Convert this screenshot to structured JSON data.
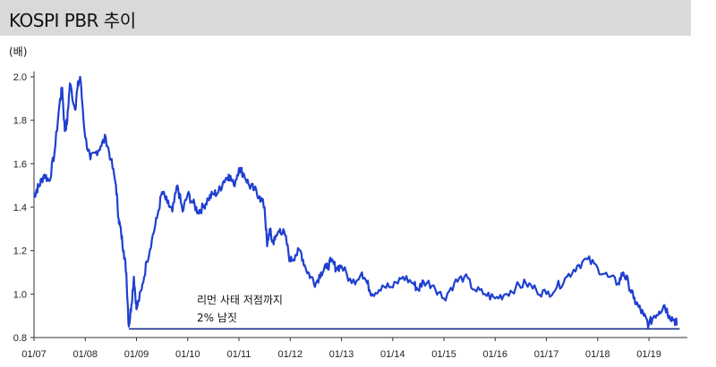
{
  "header": {
    "title": "KOSPI PBR 추이"
  },
  "chart_data": {
    "type": "line",
    "title": "KOSPI PBR 추이",
    "ylabel": "(배)",
    "xlabel": "",
    "ylim": [
      0.8,
      2.0
    ],
    "yticks": [
      "2.0",
      "1.8",
      "1.6",
      "1.4",
      "1.2",
      "1.0",
      "0.8"
    ],
    "xticks": [
      "01/07",
      "01/08",
      "01/09",
      "01/10",
      "01/11",
      "01/12",
      "01/13",
      "01/14",
      "01/15",
      "01/16",
      "01/17",
      "01/18",
      "01/19"
    ],
    "series": [
      {
        "x": [
          2007.0,
          2007.05,
          2007.1,
          2007.2,
          2007.3,
          2007.4,
          2007.5,
          2007.55,
          2007.6,
          2007.65,
          2007.7,
          2007.8,
          2007.85,
          2007.9,
          2008.0,
          2008.1,
          2008.2,
          2008.3,
          2008.4,
          2008.5,
          2008.6,
          2008.65,
          2008.7,
          2008.75,
          2008.8,
          2008.85,
          2008.9,
          2008.95,
          2009.0,
          2009.1,
          2009.2,
          2009.3,
          2009.4,
          2009.5,
          2009.6,
          2009.7,
          2009.8,
          2009.9,
          2010.0,
          2010.1,
          2010.2,
          2010.3,
          2010.4,
          2010.5,
          2010.6,
          2010.7,
          2010.8,
          2010.9,
          2011.0,
          2011.1,
          2011.2,
          2011.3,
          2011.4,
          2011.5,
          2011.55,
          2011.6,
          2011.65,
          2011.7,
          2011.8,
          2011.9,
          2012.0,
          2012.1,
          2012.2,
          2012.3,
          2012.4,
          2012.5,
          2012.6,
          2012.7,
          2012.8,
          2012.9,
          2013.0,
          2013.2,
          2013.4,
          2013.5,
          2013.6,
          2013.8,
          2014.0,
          2014.2,
          2014.4,
          2014.5,
          2014.6,
          2014.8,
          2015.0,
          2015.2,
          2015.4,
          2015.6,
          2015.8,
          2016.0,
          2016.2,
          2016.4,
          2016.6,
          2016.8,
          2017.0,
          2017.2,
          2017.4,
          2017.6,
          2017.8,
          2018.0,
          2018.2,
          2018.4,
          2018.5,
          2018.6,
          2018.7,
          2018.8,
          2018.9,
          2019.0,
          2019.1,
          2019.2,
          2019.3,
          2019.4,
          2019.5,
          2019.55
        ],
        "values": [
          1.45,
          1.48,
          1.5,
          1.55,
          1.52,
          1.65,
          1.88,
          1.95,
          1.75,
          1.8,
          1.97,
          1.85,
          1.95,
          2.0,
          1.72,
          1.62,
          1.65,
          1.68,
          1.72,
          1.62,
          1.5,
          1.35,
          1.28,
          1.2,
          1.1,
          0.85,
          0.95,
          1.08,
          0.93,
          1.02,
          1.15,
          1.25,
          1.35,
          1.47,
          1.42,
          1.38,
          1.5,
          1.38,
          1.46,
          1.42,
          1.38,
          1.4,
          1.44,
          1.46,
          1.47,
          1.52,
          1.55,
          1.5,
          1.58,
          1.55,
          1.5,
          1.48,
          1.45,
          1.4,
          1.22,
          1.3,
          1.24,
          1.25,
          1.3,
          1.27,
          1.15,
          1.18,
          1.2,
          1.12,
          1.08,
          1.05,
          1.1,
          1.12,
          1.15,
          1.12,
          1.13,
          1.05,
          1.1,
          1.05,
          1.0,
          1.04,
          1.03,
          1.08,
          1.05,
          1.02,
          1.06,
          1.04,
          0.98,
          1.05,
          1.08,
          1.02,
          1.0,
          0.98,
          1.0,
          1.03,
          1.05,
          1.02,
          1.0,
          1.03,
          1.08,
          1.13,
          1.16,
          1.12,
          1.08,
          1.05,
          1.1,
          1.05,
          0.98,
          0.94,
          0.9,
          0.86,
          0.9,
          0.92,
          0.95,
          0.9,
          0.88,
          0.86
        ]
      }
    ],
    "reference_line": {
      "value": 0.84,
      "from": 2008.85,
      "to": 2019.6
    },
    "annotations": [
      "리먼 사태 저점까지",
      "2% 남짓"
    ],
    "line_color": "#1f3fd0",
    "grid": false
  }
}
